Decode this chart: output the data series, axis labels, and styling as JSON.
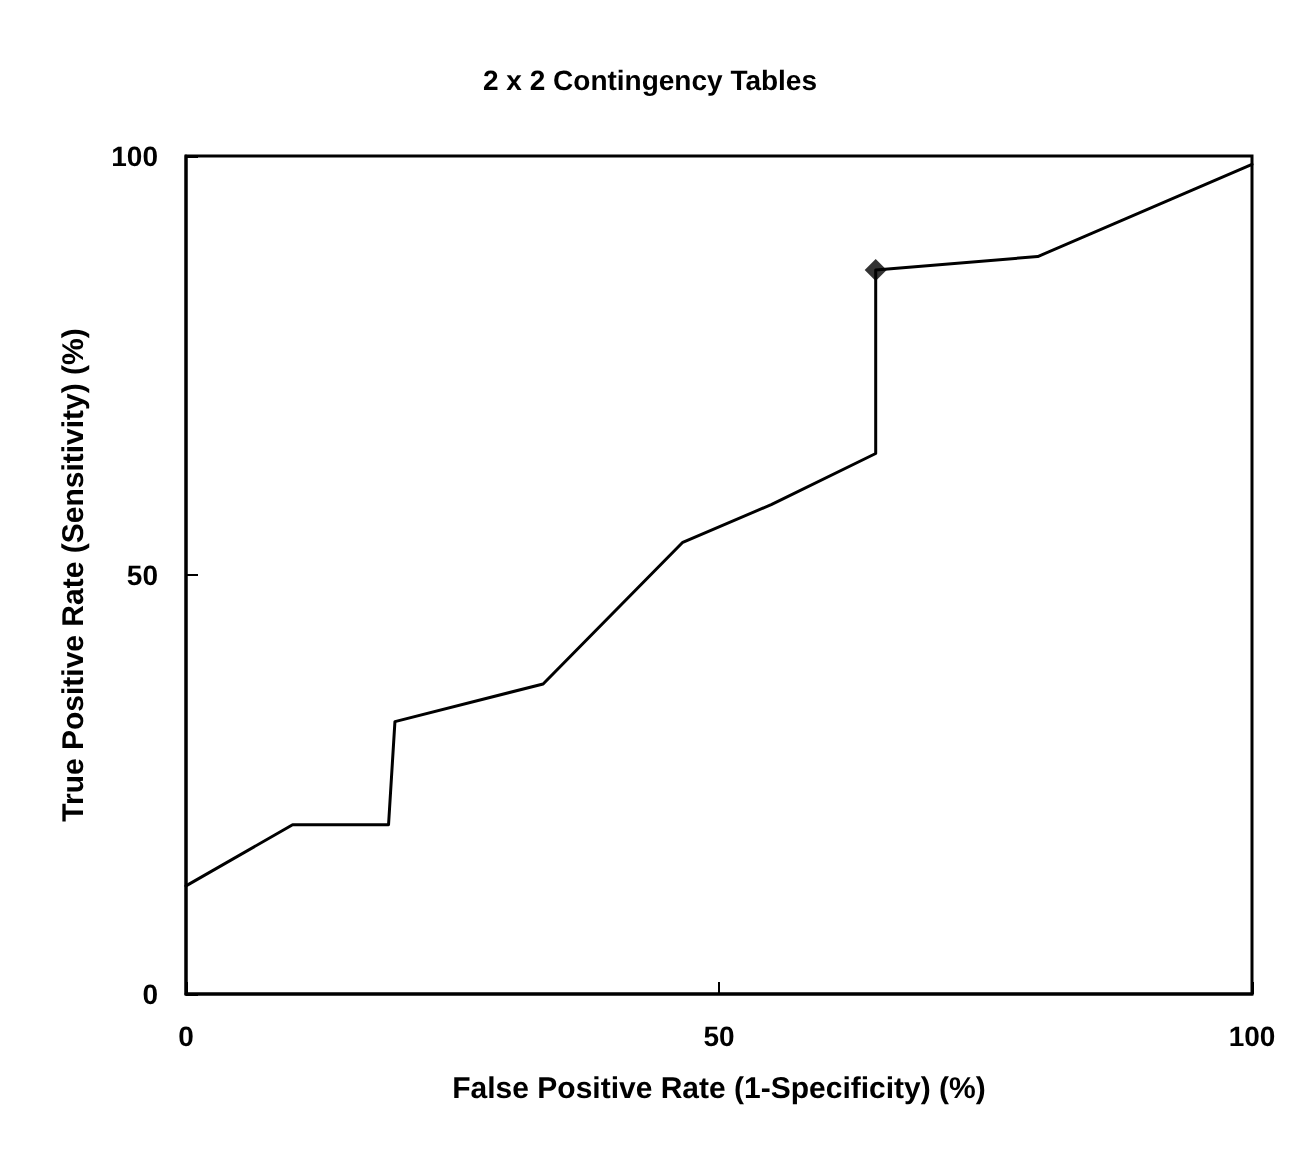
{
  "chart_data": {
    "type": "line",
    "title": "2 x 2 Contingency Tables",
    "xlabel": "False Positive Rate (1-Specificity) (%)",
    "ylabel": "True Positive Rate (Sensitivity) (%)",
    "xlim": [
      0,
      100
    ],
    "ylim": [
      0,
      100
    ],
    "xticks": [
      0,
      50,
      100
    ],
    "yticks": [
      0,
      50,
      100
    ],
    "grid": false,
    "series": [
      {
        "color": "#000000",
        "marker": "none",
        "line_style": "solid",
        "x": [
          0,
          10,
          19,
          19.6,
          33.5,
          46.6,
          54.9,
          64.7,
          64.7,
          79.9,
          100
        ],
        "values": [
          12.9,
          20.2,
          20.2,
          32.5,
          37,
          53.9,
          58.4,
          64.5,
          86.4,
          88,
          99
        ]
      },
      {
        "type": "scatter",
        "color": "#000000",
        "marker": "diamond",
        "x": [
          64.7
        ],
        "values": [
          86.4
        ]
      }
    ]
  }
}
